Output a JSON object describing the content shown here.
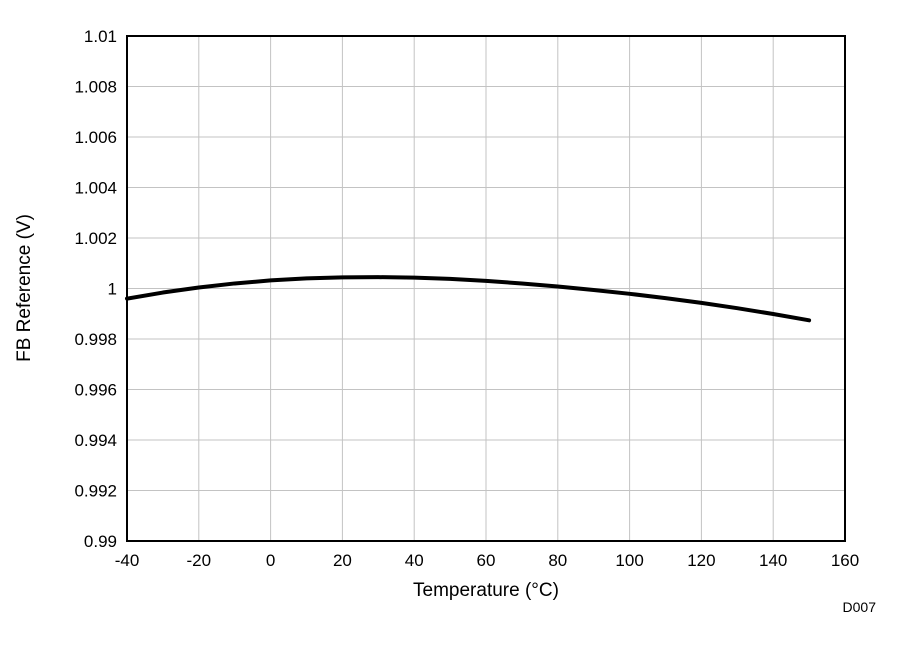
{
  "figure": {
    "watermark": "D007"
  },
  "chart_data": {
    "type": "line",
    "title": "",
    "xlabel": "Temperature (°C)",
    "ylabel": "FB Reference (V)",
    "xlim": [
      -40,
      160
    ],
    "ylim": [
      0.99,
      1.01
    ],
    "grid": true,
    "grid_color": "#c3c3c3",
    "frame_color": "#000000",
    "line_color": "#000000",
    "watermark_color": "#9a9a9a",
    "legend": "none",
    "xticks": [
      -40,
      -20,
      0,
      20,
      40,
      60,
      80,
      100,
      120,
      140,
      160
    ],
    "xtick_labels": [
      "-40",
      "-20",
      "0",
      "20",
      "40",
      "60",
      "80",
      "100",
      "120",
      "140",
      "160"
    ],
    "yticks": [
      0.99,
      0.992,
      0.994,
      0.996,
      0.998,
      1.0,
      1.002,
      1.004,
      1.006,
      1.008,
      1.01
    ],
    "ytick_labels": [
      "0.99",
      "0.992",
      "0.994",
      "0.996",
      "0.998",
      "1",
      "1.002",
      "1.004",
      "1.006",
      "1.008",
      "1.01"
    ],
    "series": [
      {
        "name": "FB Reference",
        "color": "#000000",
        "x": [
          -40,
          -30,
          -20,
          -10,
          0,
          10,
          20,
          30,
          40,
          50,
          60,
          70,
          80,
          90,
          100,
          110,
          120,
          130,
          140,
          150
        ],
        "y": [
          0.9996,
          0.99984,
          1.00004,
          1.0002,
          1.00032,
          1.0004,
          1.00044,
          1.00045,
          1.00043,
          1.00038,
          1.0003,
          1.0002,
          1.00008,
          0.99994,
          0.99979,
          0.99962,
          0.99943,
          0.99922,
          0.99899,
          0.99874
        ]
      }
    ]
  }
}
